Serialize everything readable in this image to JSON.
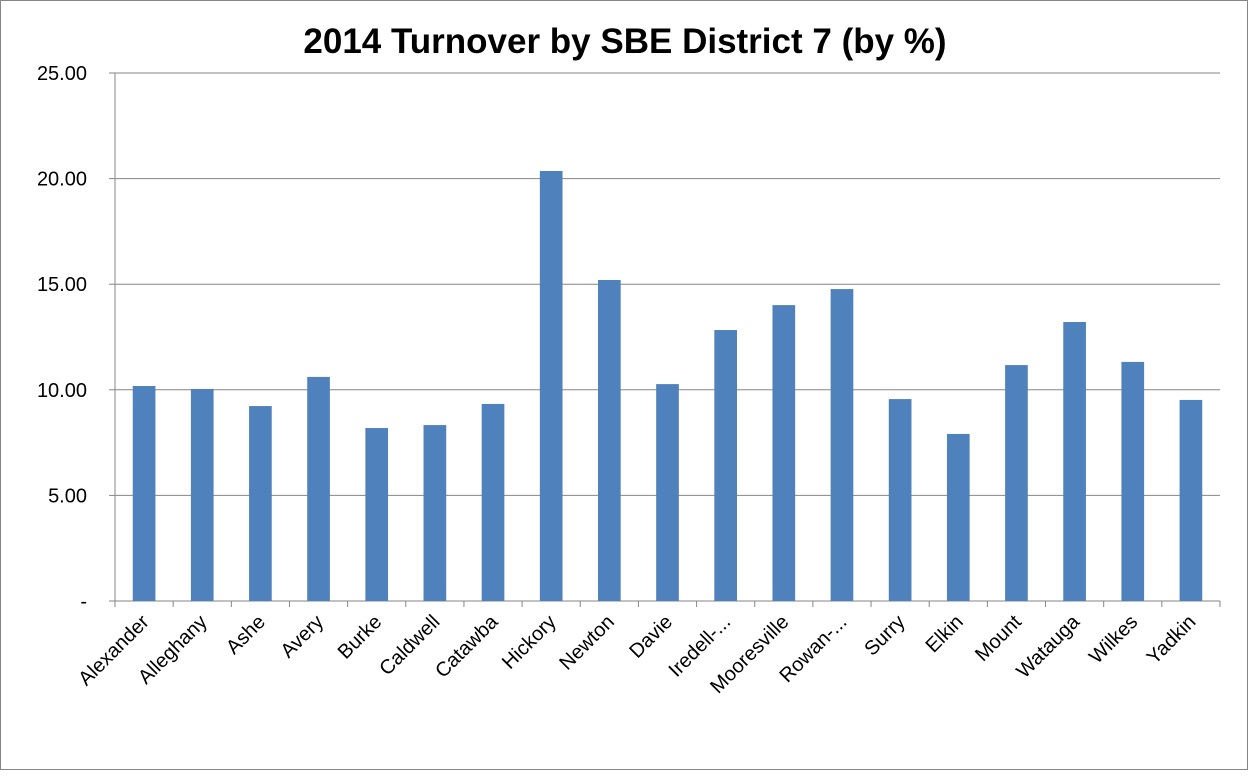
{
  "chart_data": {
    "type": "bar",
    "title": "2014 Turnover by SBE District 7 (by %)",
    "categories": [
      "Alexander",
      "Alleghany",
      "Ashe",
      "Avery",
      "Burke",
      "Caldwell",
      "Catawba",
      "Hickory",
      "Newton",
      "Davie",
      "Iredell-...",
      "Mooresville",
      "Rowan-...",
      "Surry",
      "Elkin",
      "Mount",
      "Watauga",
      "Wilkes",
      "Yadkin"
    ],
    "values": [
      10.18,
      10.04,
      9.23,
      10.61,
      8.19,
      8.33,
      9.33,
      20.36,
      15.2,
      10.27,
      12.83,
      14.01,
      14.77,
      9.56,
      7.91,
      11.17,
      13.21,
      11.32,
      9.52
    ],
    "color": "#4f81bd",
    "ylim": [
      0,
      25
    ],
    "yticks": [
      {
        "value": 0,
        "label": "-"
      },
      {
        "value": 5,
        "label": "5.00"
      },
      {
        "value": 10,
        "label": "10.00"
      },
      {
        "value": 15,
        "label": "15.00"
      },
      {
        "value": 20,
        "label": "20.00"
      },
      {
        "value": 25,
        "label": "25.00"
      }
    ],
    "grid": true
  }
}
